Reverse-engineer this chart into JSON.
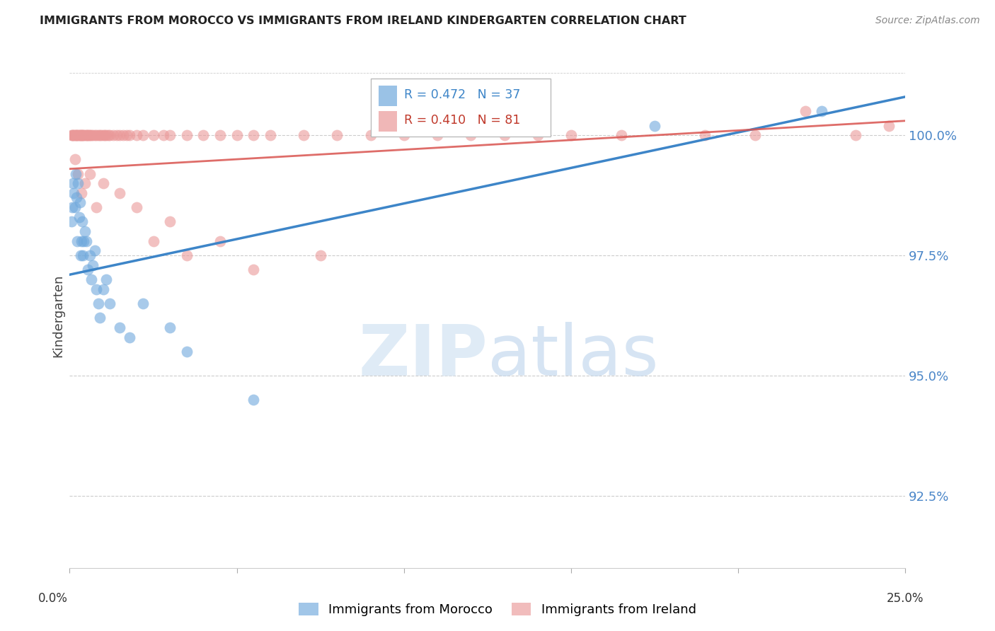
{
  "title": "IMMIGRANTS FROM MOROCCO VS IMMIGRANTS FROM IRELAND KINDERGARTEN CORRELATION CHART",
  "source": "Source: ZipAtlas.com",
  "ylabel_label": "Kindergarten",
  "xlim": [
    0.0,
    25.0
  ],
  "ylim": [
    91.0,
    101.5
  ],
  "yticks": [
    92.5,
    95.0,
    97.5,
    100.0
  ],
  "ytick_labels": [
    "92.5%",
    "95.0%",
    "97.5%",
    "100.0%"
  ],
  "morocco_color": "#6fa8dc",
  "ireland_color": "#ea9999",
  "morocco_line_color": "#3d85c8",
  "ireland_line_color": "#cc4125",
  "morocco_x": [
    0.05,
    0.08,
    0.1,
    0.12,
    0.15,
    0.18,
    0.2,
    0.22,
    0.25,
    0.28,
    0.3,
    0.32,
    0.35,
    0.38,
    0.4,
    0.42,
    0.45,
    0.5,
    0.55,
    0.6,
    0.65,
    0.7,
    0.75,
    0.8,
    0.85,
    0.9,
    1.0,
    1.1,
    1.2,
    1.5,
    1.8,
    2.2,
    3.0,
    3.5,
    5.5,
    17.5,
    22.5
  ],
  "morocco_y": [
    98.2,
    98.5,
    99.0,
    98.8,
    98.5,
    99.2,
    98.7,
    97.8,
    99.0,
    98.3,
    98.6,
    97.5,
    97.8,
    98.2,
    97.5,
    97.8,
    98.0,
    97.8,
    97.2,
    97.5,
    97.0,
    97.3,
    97.6,
    96.8,
    96.5,
    96.2,
    96.8,
    97.0,
    96.5,
    96.0,
    95.8,
    96.5,
    96.0,
    95.5,
    94.5,
    100.2,
    100.5
  ],
  "ireland_x": [
    0.05,
    0.08,
    0.1,
    0.12,
    0.15,
    0.18,
    0.2,
    0.22,
    0.25,
    0.28,
    0.3,
    0.32,
    0.35,
    0.38,
    0.4,
    0.42,
    0.45,
    0.5,
    0.52,
    0.55,
    0.58,
    0.6,
    0.65,
    0.7,
    0.75,
    0.8,
    0.85,
    0.9,
    0.95,
    1.0,
    1.05,
    1.1,
    1.15,
    1.2,
    1.3,
    1.4,
    1.5,
    1.6,
    1.7,
    1.8,
    2.0,
    2.2,
    2.5,
    2.8,
    3.0,
    3.5,
    4.0,
    4.5,
    5.0,
    5.5,
    6.0,
    7.0,
    8.0,
    9.0,
    10.0,
    11.0,
    12.0,
    13.0,
    14.0,
    15.0,
    16.5,
    19.0,
    20.5,
    22.0,
    23.5,
    24.5,
    0.15,
    0.25,
    0.35,
    0.45,
    0.6,
    0.8,
    1.0,
    1.5,
    2.0,
    2.5,
    3.0,
    3.5,
    4.5,
    5.5,
    7.5
  ],
  "ireland_y": [
    100.0,
    100.0,
    100.0,
    100.0,
    100.0,
    100.0,
    100.0,
    100.0,
    100.0,
    100.0,
    100.0,
    100.0,
    100.0,
    100.0,
    100.0,
    100.0,
    100.0,
    100.0,
    100.0,
    100.0,
    100.0,
    100.0,
    100.0,
    100.0,
    100.0,
    100.0,
    100.0,
    100.0,
    100.0,
    100.0,
    100.0,
    100.0,
    100.0,
    100.0,
    100.0,
    100.0,
    100.0,
    100.0,
    100.0,
    100.0,
    100.0,
    100.0,
    100.0,
    100.0,
    100.0,
    100.0,
    100.0,
    100.0,
    100.0,
    100.0,
    100.0,
    100.0,
    100.0,
    100.0,
    100.0,
    100.0,
    100.0,
    100.0,
    100.0,
    100.0,
    100.0,
    100.0,
    100.0,
    100.5,
    100.0,
    100.2,
    99.5,
    99.2,
    98.8,
    99.0,
    99.2,
    98.5,
    99.0,
    98.8,
    98.5,
    97.8,
    98.2,
    97.5,
    97.8,
    97.2,
    97.5
  ],
  "morocco_trend_x0": 0.0,
  "morocco_trend_y0": 97.1,
  "morocco_trend_x1": 25.0,
  "morocco_trend_y1": 100.8,
  "ireland_trend_x0": 0.0,
  "ireland_trend_y0": 99.3,
  "ireland_trend_x1": 25.0,
  "ireland_trend_y1": 100.3
}
